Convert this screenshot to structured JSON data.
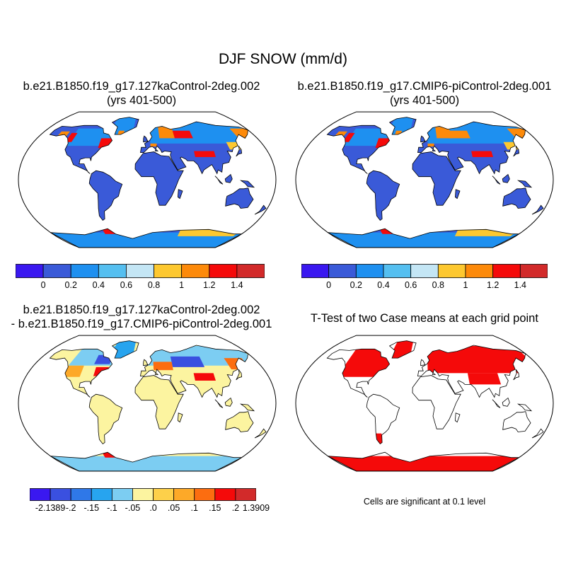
{
  "figure": {
    "title": "DJF SNOW (mm/d)"
  },
  "panels": {
    "top_left": {
      "title_line1": "b.e21.B1850.f19_g17.127kaControl-2deg.002",
      "title_line2": "(yrs 401-500)"
    },
    "top_right": {
      "title_line1": "b.e21.B1850.f19_g17.CMIP6-piControl-2deg.001",
      "title_line2": "(yrs 401-500)"
    },
    "bottom_left": {
      "title_line1": "b.e21.B1850.f19_g17.127kaControl-2deg.002",
      "title_line2": "- b.e21.B1850.f19_g17.CMIP6-piControl-2deg.001"
    },
    "bottom_right": {
      "title_line1": "T-Test of two Case means at each grid point",
      "note": "Cells are significant at 0.1 level"
    }
  },
  "colorbars": {
    "field": {
      "colors": [
        "#3a18f0",
        "#3a5ad8",
        "#1e90f0",
        "#55bff0",
        "#c4e6f5",
        "#fdc830",
        "#fd8a0a",
        "#f50a0a",
        "#d22a2a"
      ],
      "labels": [
        "0",
        "0.2",
        "0.4",
        "0.6",
        "0.8",
        "1",
        "1.2",
        "1.4"
      ]
    },
    "difference": {
      "colors": [
        "#3a18f0",
        "#3a50e0",
        "#2f78e8",
        "#27a4ef",
        "#7ccdf2",
        "#fcf4a0",
        "#fdd04a",
        "#fda928",
        "#fc6d10",
        "#f50a0a",
        "#d22a2a"
      ],
      "labels": [
        "-2.1389",
        "-.2",
        "-.15",
        "-.1",
        "-.05",
        ".0",
        ".05",
        ".1",
        ".15",
        ".2",
        "1.3909"
      ]
    }
  },
  "colors": {
    "ocean": "#ffffff",
    "land_low_snow": "#3a5ad8",
    "diff_neutral": "#fcf4a0",
    "significant": "#f50a0a"
  }
}
